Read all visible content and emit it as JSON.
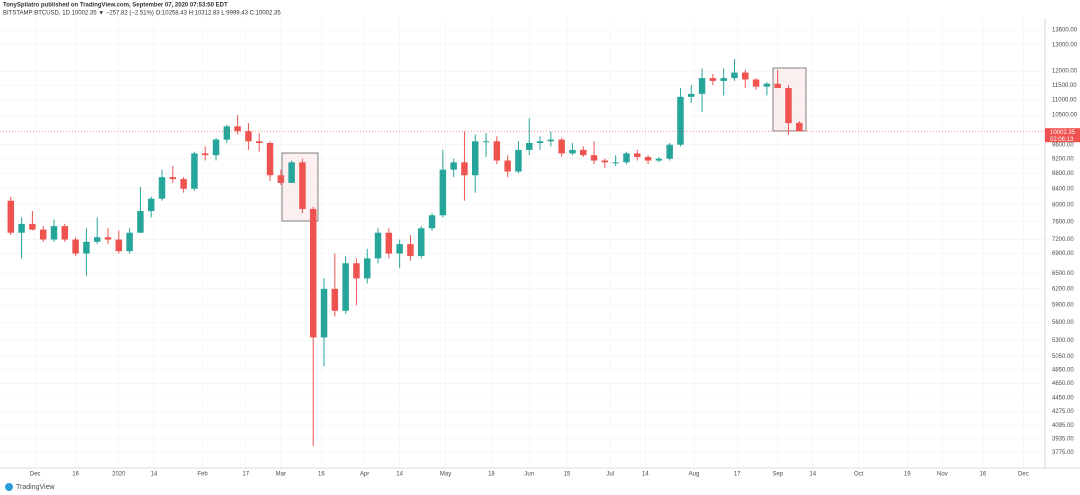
{
  "header": {
    "author_line": "TonySpilatro published on TradingView.com, September 07, 2020 07:53:50 EDT",
    "symbol_line": "BITSTAMP:BTCUSD, 1D 10002.35 ▼ −257.82 (−2.51%) O:10258.43 H:10312.83 L:9999.43 C:10002.35"
  },
  "footer": "TradingView",
  "chart_data": {
    "type": "candlestick",
    "log_scale": true,
    "grid": true,
    "up_color": "#26a69a",
    "down_color": "#ef5350",
    "price_label": "10002.35",
    "countdown": "02:06:13",
    "x": [
      "2019-11-20",
      "2019-11-24",
      "2019-11-28",
      "2019-12-02",
      "2019-12-06",
      "2019-12-10",
      "2019-12-14",
      "2019-12-18",
      "2019-12-22",
      "2019-12-26",
      "2019-12-30",
      "2020-01-03",
      "2020-01-07",
      "2020-01-11",
      "2020-01-15",
      "2020-01-19",
      "2020-01-23",
      "2020-01-27",
      "2020-01-31",
      "2020-02-04",
      "2020-02-08",
      "2020-02-12",
      "2020-02-16",
      "2020-02-20",
      "2020-02-24",
      "2020-02-28",
      "2020-03-03",
      "2020-03-07",
      "2020-03-11",
      "2020-03-15",
      "2020-03-19",
      "2020-03-23",
      "2020-03-27",
      "2020-03-31",
      "2020-04-04",
      "2020-04-08",
      "2020-04-12",
      "2020-04-16",
      "2020-04-20",
      "2020-04-24",
      "2020-04-28",
      "2020-05-02",
      "2020-05-06",
      "2020-05-10",
      "2020-05-14",
      "2020-05-18",
      "2020-05-22",
      "2020-05-26",
      "2020-05-30",
      "2020-06-03",
      "2020-06-07",
      "2020-06-11",
      "2020-06-15",
      "2020-06-19",
      "2020-06-23",
      "2020-06-27",
      "2020-07-01",
      "2020-07-05",
      "2020-07-09",
      "2020-07-13",
      "2020-07-17",
      "2020-07-21",
      "2020-07-25",
      "2020-07-29",
      "2020-08-02",
      "2020-08-06",
      "2020-08-10",
      "2020-08-14",
      "2020-08-18",
      "2020-08-22",
      "2020-08-26",
      "2020-08-30",
      "2020-09-03",
      "2020-09-07"
    ],
    "open": [
      8100,
      7350,
      7550,
      7420,
      7200,
      7500,
      7200,
      6900,
      7150,
      7250,
      7200,
      6950,
      7350,
      7850,
      8150,
      8700,
      8650,
      8400,
      9350,
      9300,
      9750,
      10150,
      10000,
      9700,
      9650,
      8750,
      8550,
      9100,
      7900,
      5350,
      6200,
      5800,
      6700,
      6400,
      6800,
      7350,
      6900,
      7100,
      6850,
      7450,
      7750,
      8900,
      9100,
      8750,
      9700,
      9700,
      9150,
      8850,
      9450,
      9650,
      9700,
      9750,
      9350,
      9450,
      9300,
      9150,
      9100,
      9100,
      9350,
      9250,
      9150,
      9200,
      9600,
      11100,
      11200,
      11750,
      11650,
      11750,
      11950,
      11700,
      11450,
      11550,
      11400,
      10258.43
    ],
    "high": [
      8200,
      7700,
      7850,
      7500,
      7650,
      7550,
      7250,
      7450,
      7700,
      7450,
      7400,
      7450,
      8450,
      8200,
      8900,
      9000,
      8700,
      9400,
      9550,
      9800,
      10200,
      10500,
      10250,
      9950,
      9700,
      8900,
      9150,
      9200,
      7950,
      6400,
      6900,
      6850,
      6800,
      7000,
      7450,
      7450,
      7200,
      7300,
      7500,
      7800,
      9450,
      9200,
      10000,
      9900,
      9950,
      9850,
      9300,
      9700,
      10400,
      9850,
      10000,
      9800,
      9650,
      9550,
      9700,
      9200,
      9300,
      9400,
      9450,
      9300,
      9250,
      9650,
      11400,
      11500,
      12100,
      11900,
      12100,
      12450,
      12050,
      11750,
      11600,
      12050,
      11500,
      10312.83
    ],
    "low": [
      7300,
      6800,
      7400,
      7150,
      7150,
      7150,
      6850,
      6450,
      7100,
      7100,
      6900,
      6900,
      7350,
      7700,
      8100,
      8550,
      8300,
      8350,
      9150,
      9150,
      9650,
      9900,
      9450,
      9400,
      8600,
      8500,
      8550,
      7800,
      3850,
      4900,
      5700,
      5750,
      5900,
      6300,
      6700,
      6800,
      6600,
      6750,
      6800,
      7400,
      7700,
      8700,
      8100,
      8300,
      9250,
      9050,
      8700,
      8800,
      9300,
      9450,
      9550,
      9250,
      9300,
      9250,
      9050,
      8950,
      9000,
      9050,
      9150,
      9050,
      9100,
      9150,
      9550,
      10900,
      10600,
      11500,
      11150,
      11650,
      11400,
      11350,
      11150,
      11450,
      9900,
      9999.43
    ],
    "close": [
      7350,
      7550,
      7420,
      7200,
      7500,
      7200,
      6900,
      7150,
      7250,
      7200,
      6950,
      7350,
      7850,
      8150,
      8700,
      8650,
      8400,
      9350,
      9300,
      9750,
      10150,
      10000,
      9700,
      9650,
      8750,
      8550,
      9100,
      7900,
      5350,
      6200,
      5800,
      6700,
      6400,
      6800,
      7350,
      6900,
      7100,
      6850,
      7450,
      7750,
      8900,
      9100,
      8750,
      9700,
      9700,
      9150,
      8850,
      9450,
      9650,
      9700,
      9750,
      9350,
      9450,
      9300,
      9150,
      9100,
      9100,
      9350,
      9250,
      9150,
      9200,
      9600,
      11100,
      11200,
      11750,
      11650,
      11750,
      11950,
      11700,
      11450,
      11550,
      11400,
      10250,
      10002.35
    ],
    "xlim": [
      "2019-11-18",
      "2020-12-09"
    ],
    "xticks": [
      {
        "value": "2019-12-01",
        "label": "Dec"
      },
      {
        "value": "2019-12-16",
        "label": "16"
      },
      {
        "value": "2020-01-01",
        "label": "2020"
      },
      {
        "value": "2020-01-14",
        "label": "14"
      },
      {
        "value": "2020-02-01",
        "label": "Feb"
      },
      {
        "value": "2020-02-17",
        "label": "17"
      },
      {
        "value": "2020-03-01",
        "label": "Mar"
      },
      {
        "value": "2020-03-16",
        "label": "16"
      },
      {
        "value": "2020-04-01",
        "label": "Apr"
      },
      {
        "value": "2020-04-14",
        "label": "14"
      },
      {
        "value": "2020-05-01",
        "label": "May"
      },
      {
        "value": "2020-05-18",
        "label": "18"
      },
      {
        "value": "2020-06-01",
        "label": "Jun"
      },
      {
        "value": "2020-06-15",
        "label": "15"
      },
      {
        "value": "2020-07-01",
        "label": "Jul"
      },
      {
        "value": "2020-07-14",
        "label": "14"
      },
      {
        "value": "2020-08-01",
        "label": "Aug"
      },
      {
        "value": "2020-08-17",
        "label": "17"
      },
      {
        "value": "2020-09-01",
        "label": "Sep"
      },
      {
        "value": "2020-09-14",
        "label": "14"
      },
      {
        "value": "2020-10-01",
        "label": "Oct"
      },
      {
        "value": "2020-10-19",
        "label": "19"
      },
      {
        "value": "2020-11-01",
        "label": "Nov"
      },
      {
        "value": "2020-11-16",
        "label": "16"
      },
      {
        "value": "2020-12-01",
        "label": "Dec"
      }
    ],
    "ylim": [
      3600,
      14100
    ],
    "yticks": [
      {
        "value": 3775,
        "label": "3775.00"
      },
      {
        "value": 3935,
        "label": "3935.00"
      },
      {
        "value": 4095,
        "label": "4095.00"
      },
      {
        "value": 4275,
        "label": "4275.00"
      },
      {
        "value": 4450,
        "label": "4450.00"
      },
      {
        "value": 4650,
        "label": "4650.00"
      },
      {
        "value": 4850,
        "label": "4850.00"
      },
      {
        "value": 5050,
        "label": "5050.00"
      },
      {
        "value": 5300,
        "label": "5300.00"
      },
      {
        "value": 5600,
        "label": "5600.00"
      },
      {
        "value": 5900,
        "label": "5900.00"
      },
      {
        "value": 6200,
        "label": "6200.00"
      },
      {
        "value": 6500,
        "label": "6500.00"
      },
      {
        "value": 6900,
        "label": "6900.00"
      },
      {
        "value": 7200,
        "label": "7200.00"
      },
      {
        "value": 7600,
        "label": "7600.00"
      },
      {
        "value": 8000,
        "label": "8000.00"
      },
      {
        "value": 8400,
        "label": "8400.00"
      },
      {
        "value": 8800,
        "label": "8800.00"
      },
      {
        "value": 9200,
        "label": "9200.00"
      },
      {
        "value": 9600,
        "label": "9600.00"
      },
      {
        "value": 10500,
        "label": "10500.00"
      },
      {
        "value": 11000,
        "label": "11000.00"
      },
      {
        "value": 11500,
        "label": "11500.00"
      },
      {
        "value": 12000,
        "label": "12000.00"
      },
      {
        "value": 13000,
        "label": "13000.00"
      },
      {
        "value": 13600,
        "label": "13600.00"
      }
    ]
  }
}
